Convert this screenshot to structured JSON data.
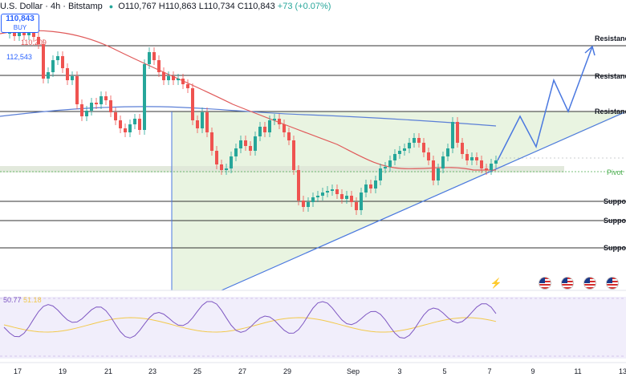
{
  "header": {
    "symbol_title": "U.S. Dollar · 4h · Bitstamp",
    "ohlc": "O110,767 H110,863 L110,734 C110,843",
    "change": "+73 (+0.07%)"
  },
  "buy_box": {
    "price": "110,843",
    "label": "BUY"
  },
  "price_markers": {
    "ma_value": "110,209",
    "level_value": "112,543"
  },
  "levels": {
    "resistance_1": "Resistance",
    "resistance_2": "Resistance",
    "resistance_3": "Resistance",
    "pivot": "Pivot",
    "support_1": "Suppor",
    "support_2": "Suppor",
    "support_3": "Suppor"
  },
  "rsi": {
    "value": "50.77",
    "ma_value": "51.18"
  },
  "x_axis": [
    "17",
    "19",
    "21",
    "23",
    "25",
    "27",
    "29",
    "Sep",
    "3",
    "5",
    "7",
    "9",
    "11",
    "13"
  ],
  "colors": {
    "up_candle": "#26a69a",
    "down_candle": "#ef5350",
    "ma_red": "#e05a5a",
    "ma_blue": "#5b7fd6",
    "rsi_line": "#7e57c2",
    "rsi_ma": "#f2c94c",
    "triangle_fill": "#e8f3df",
    "projection": "#4a78e0",
    "pivot": "#4caf50"
  },
  "icons": {
    "event": "lightning-event-icon",
    "flag": "us-flag-icon"
  }
}
